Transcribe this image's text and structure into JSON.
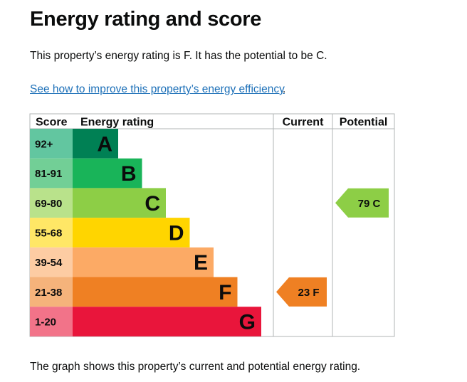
{
  "page": {
    "heading": "Energy rating and score",
    "summary": "This property’s energy rating is F. It has the potential to be C.",
    "link_text": "See how to improve this property’s energy efficiency",
    "link_suffix": ".",
    "footer": "The graph shows this property’s current and potential energy rating."
  },
  "chart_data": {
    "type": "bar",
    "columns": {
      "score": "Score",
      "rating": "Energy rating",
      "current": "Current",
      "potential": "Potential"
    },
    "bands": [
      {
        "score": "92+",
        "letter": "A",
        "color": "#008054",
        "score_color": "#62c6a0"
      },
      {
        "score": "81-91",
        "letter": "B",
        "color": "#19b459",
        "score_color": "#72cf96"
      },
      {
        "score": "69-80",
        "letter": "C",
        "color": "#8dce46",
        "score_color": "#b9e28b"
      },
      {
        "score": "55-68",
        "letter": "D",
        "color": "#ffd500",
        "score_color": "#ffe766"
      },
      {
        "score": "39-54",
        "letter": "E",
        "color": "#fcaa65",
        "score_color": "#fdcca3"
      },
      {
        "score": "21-38",
        "letter": "F",
        "color": "#ef8023",
        "score_color": "#f5b37b"
      },
      {
        "score": "1-20",
        "letter": "G",
        "color": "#e9153b",
        "score_color": "#f27389"
      }
    ],
    "current": {
      "score": 23,
      "letter": "F",
      "label": "23  F",
      "color": "#ef8023"
    },
    "potential": {
      "score": 79,
      "letter": "C",
      "label": "79  C",
      "color": "#8dce46"
    }
  }
}
